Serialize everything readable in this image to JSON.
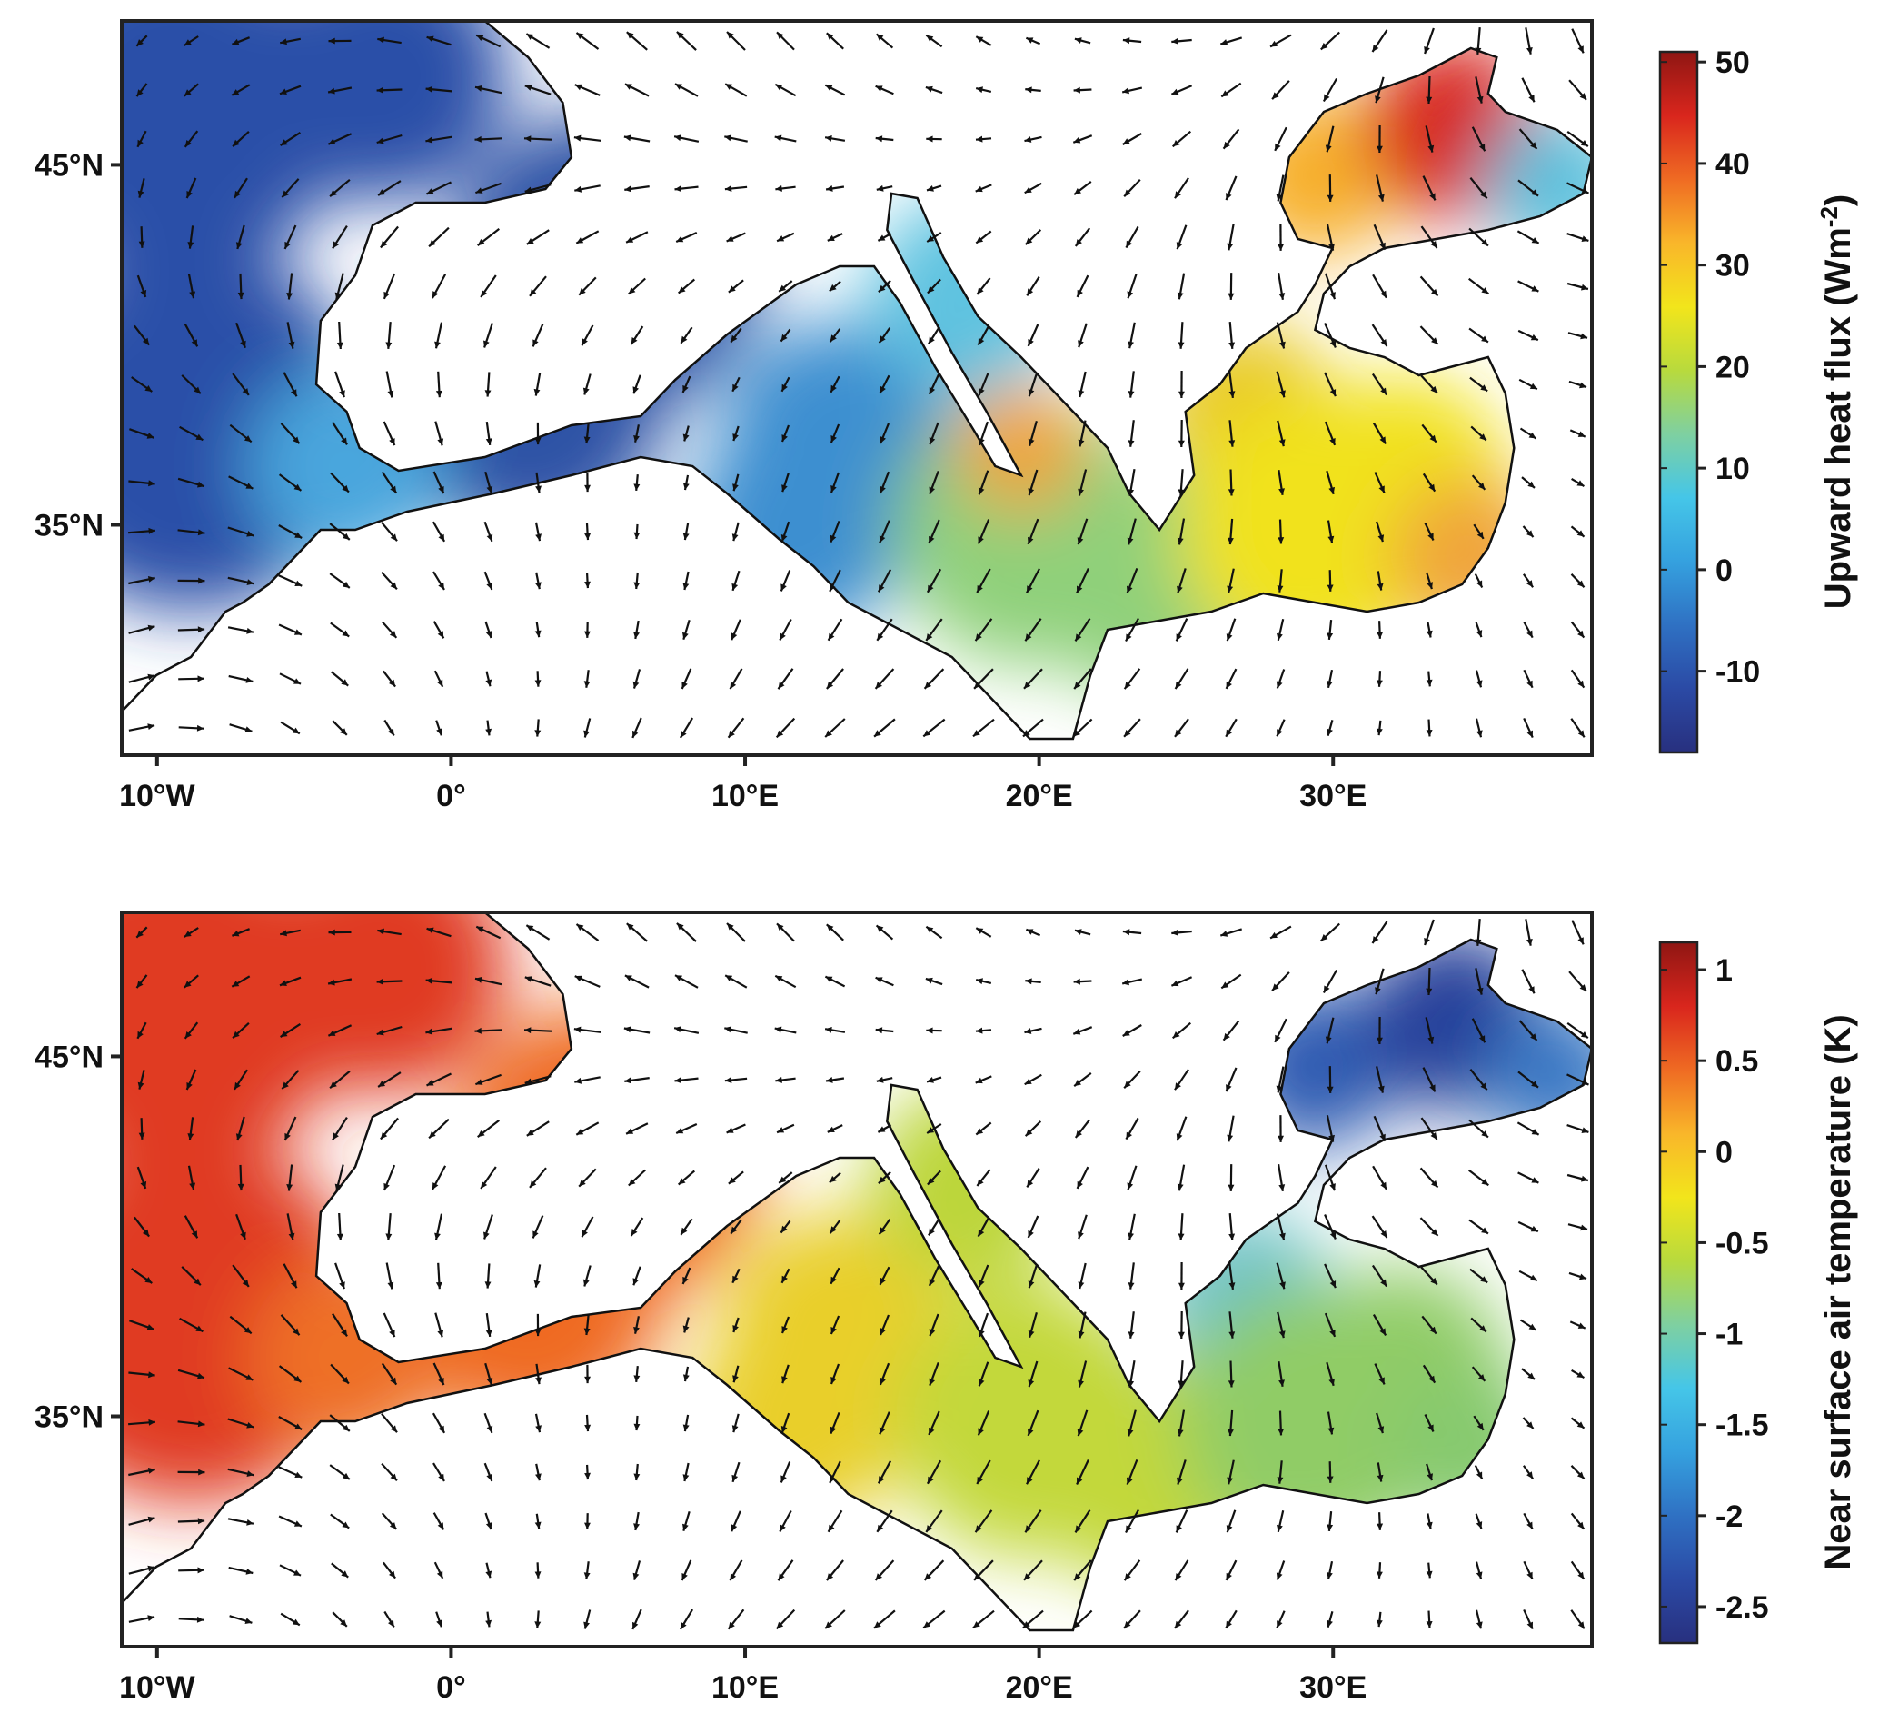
{
  "panels": [
    {
      "id": "top",
      "colorbar": {
        "title": "Upward heat flux (Wm",
        "title_sup": "-2",
        "title_end": ")",
        "ticks": [
          "50",
          "40",
          "30",
          "20",
          "10",
          "0",
          "-10"
        ],
        "tick_values": [
          50,
          40,
          30,
          20,
          10,
          0,
          -10
        ],
        "range": [
          -18,
          51
        ]
      },
      "lat_labels": [
        "45°N",
        "35°N"
      ],
      "lon_labels": [
        "10°W",
        "0°",
        "10°E",
        "20°E",
        "30°E"
      ],
      "field": {
        "western_atlantic": "#2a4fa8",
        "gulf_of_lion_balearic": "#2e52a6",
        "tyrrhenian": "#3e8fd0",
        "adriatic": "#5fc3e0",
        "ionian": "#8fd07a",
        "central_ionian_hotspot": "#f2a238",
        "aegean": "#e8c92a",
        "levantine": "#f1e21d",
        "levantine_east": "#f0a43a",
        "black_sea_west": "#f7b02b",
        "black_sea_north": "#d8281d",
        "black_sea_east": "#5bc0dc",
        "alboran": "#4aa6dd"
      }
    },
    {
      "id": "bottom",
      "colorbar": {
        "title": "Near surface air temperature (K)",
        "ticks": [
          "1",
          "0.5",
          "0",
          "-0.5",
          "-1",
          "-1.5",
          "-2",
          "-2.5"
        ],
        "tick_values": [
          1,
          0.5,
          0,
          -0.5,
          -1,
          -1.5,
          -2,
          -2.5
        ],
        "range": [
          -2.7,
          1.15
        ]
      },
      "lat_labels": [
        "45°N",
        "35°N"
      ],
      "lon_labels": [
        "10°W",
        "0°",
        "10°E",
        "20°E",
        "30°E"
      ],
      "field": {
        "western_atlantic": "#e03a22",
        "gulf_of_lion_balearic": "#ef6a24",
        "tyrrhenian": "#e9cf2a",
        "adriatic": "#bcd63a",
        "ionian": "#c3d83a",
        "central_ionian_hotspot": "#c3d83a",
        "aegean": "#6fc3c8",
        "levantine": "#90cc66",
        "levantine_east": "#86c96e",
        "black_sea_west": "#2d5cb2",
        "black_sea_north": "#273f9a",
        "black_sea_east": "#3a78c4",
        "alboran": "#ee6f26"
      }
    }
  ],
  "colormap": [
    "#28307f",
    "#2b4aa5",
    "#2f71c3",
    "#35a1df",
    "#45c6e8",
    "#7fd0a0",
    "#b8da3d",
    "#f2e51b",
    "#f9b62a",
    "#ef6b23",
    "#d9261d",
    "#8f1613"
  ]
}
